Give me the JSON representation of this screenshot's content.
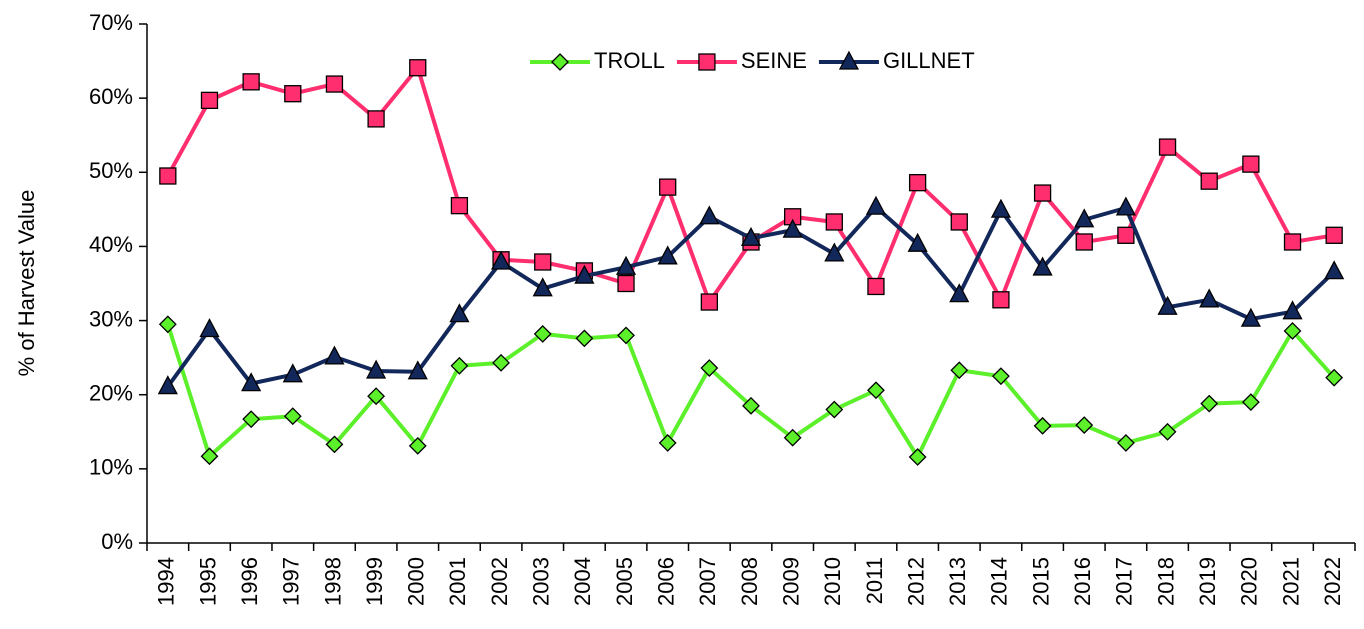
{
  "chart_data": {
    "type": "line",
    "ylabel": "% of Harvest Value",
    "categories": [
      "1994",
      "1995",
      "1996",
      "1997",
      "1998",
      "1999",
      "2000",
      "2001",
      "2002",
      "2003",
      "2004",
      "2005",
      "2006",
      "2007",
      "2008",
      "2009",
      "2010",
      "2011",
      "2012",
      "2013",
      "2014",
      "2015",
      "2016",
      "2017",
      "2018",
      "2019",
      "2020",
      "2021",
      "2022"
    ],
    "series": [
      {
        "name": "TROLL",
        "color": "#5cf02a",
        "marker": "diamond",
        "values": [
          29.5,
          11.7,
          16.7,
          17.1,
          13.3,
          19.8,
          13.1,
          23.9,
          24.3,
          28.2,
          27.6,
          28.0,
          13.5,
          23.6,
          18.5,
          14.2,
          18.0,
          20.6,
          11.6,
          23.3,
          22.5,
          15.8,
          15.9,
          13.5,
          15.0,
          18.8,
          19.0,
          28.6,
          22.3
        ]
      },
      {
        "name": "SEINE",
        "color": "#ff2e6e",
        "marker": "square",
        "values": [
          49.5,
          59.7,
          62.2,
          60.6,
          61.9,
          57.2,
          64.1,
          45.5,
          38.2,
          37.9,
          36.7,
          35.0,
          48.0,
          32.5,
          40.6,
          44.0,
          43.3,
          34.6,
          48.6,
          43.3,
          32.8,
          47.2,
          40.6,
          41.5,
          53.4,
          48.8,
          51.1,
          40.6,
          41.5
        ]
      },
      {
        "name": "GILLNET",
        "color": "#13285a",
        "marker": "triangle",
        "values": [
          21.1,
          28.8,
          21.5,
          22.7,
          25.1,
          23.2,
          23.1,
          30.8,
          37.9,
          34.3,
          36.0,
          37.2,
          38.6,
          44.0,
          41.1,
          42.2,
          39.0,
          45.3,
          40.3,
          33.5,
          44.9,
          37.1,
          43.6,
          45.2,
          31.8,
          32.8,
          30.2,
          31.2,
          36.6
        ]
      }
    ],
    "ylim": [
      0,
      70
    ],
    "yticks": [
      {
        "value": 0,
        "label": "0%"
      },
      {
        "value": 10,
        "label": "10%"
      },
      {
        "value": 20,
        "label": "20%"
      },
      {
        "value": 30,
        "label": "30%"
      },
      {
        "value": 40,
        "label": "40%"
      },
      {
        "value": 50,
        "label": "50%"
      },
      {
        "value": 60,
        "label": "60%"
      },
      {
        "value": 70,
        "label": "70%"
      }
    ],
    "grid": false,
    "legend": "top"
  }
}
